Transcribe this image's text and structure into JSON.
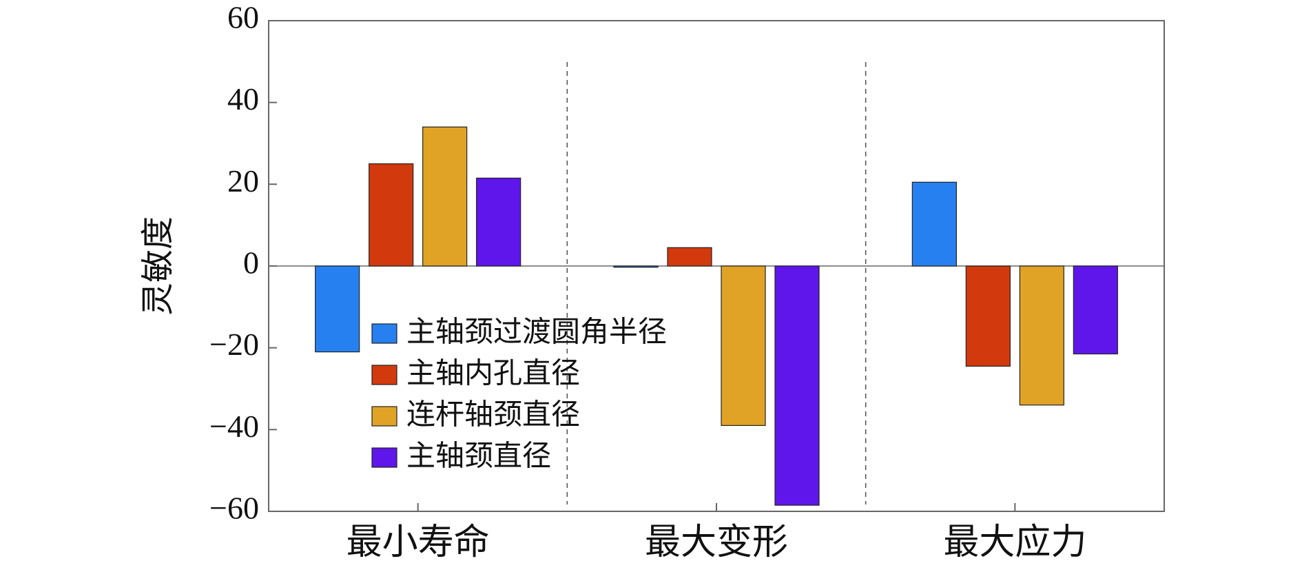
{
  "chart_data": {
    "type": "bar",
    "title": "",
    "xlabel": "",
    "ylabel": "灵敏度",
    "ylim": [
      -60,
      60
    ],
    "yticks": [
      60,
      40,
      20,
      0,
      -20,
      -40,
      -60
    ],
    "ytick_labels": [
      "60",
      "40",
      "20",
      "0",
      "−20",
      "−40",
      "−60"
    ],
    "categories": [
      "最小寿命",
      "最大变形",
      "最大应力"
    ],
    "series": [
      {
        "name": "主轴颈过渡圆角半径",
        "color": "#2680f0",
        "values": [
          -21,
          -0.3,
          20.5
        ]
      },
      {
        "name": "主轴内孔直径",
        "color": "#d23a0e",
        "values": [
          25,
          4.5,
          -24.5
        ]
      },
      {
        "name": "连杆轴颈直径",
        "color": "#e0a326",
        "values": [
          34,
          -39,
          -34
        ]
      },
      {
        "name": "主轴颈直径",
        "color": "#5f16ea",
        "values": [
          21.5,
          -58.5,
          -21.5
        ]
      }
    ],
    "grid": false,
    "legend_position": "center-left",
    "group_separators": "dashed"
  }
}
